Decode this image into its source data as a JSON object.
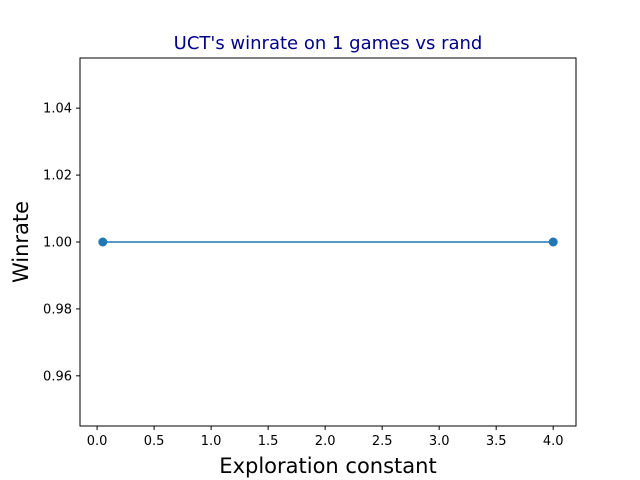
{
  "chart_data": {
    "type": "line",
    "title": "UCT's winrate on 1 games vs rand",
    "xlabel": "Exploration constant",
    "ylabel": "Winrate",
    "xlim": [
      -0.15,
      4.2
    ],
    "ylim": [
      0.945,
      1.055
    ],
    "xticks": [
      0.0,
      0.5,
      1.0,
      1.5,
      2.0,
      2.5,
      3.0,
      3.5,
      4.0
    ],
    "xtick_labels": [
      "0.0",
      "0.5",
      "1.0",
      "1.5",
      "2.0",
      "2.5",
      "3.0",
      "3.5",
      "4.0"
    ],
    "yticks": [
      0.96,
      0.98,
      1.0,
      1.02,
      1.04
    ],
    "ytick_labels": [
      "0.96",
      "0.98",
      "1.00",
      "1.02",
      "1.04"
    ],
    "series": [
      {
        "x": [
          0.05,
          4.0
        ],
        "y": [
          1.0,
          1.0
        ],
        "color": "#1f77b4",
        "marker": "circle"
      }
    ],
    "grid": false,
    "legend": "none",
    "title_color": "#00008b"
  }
}
